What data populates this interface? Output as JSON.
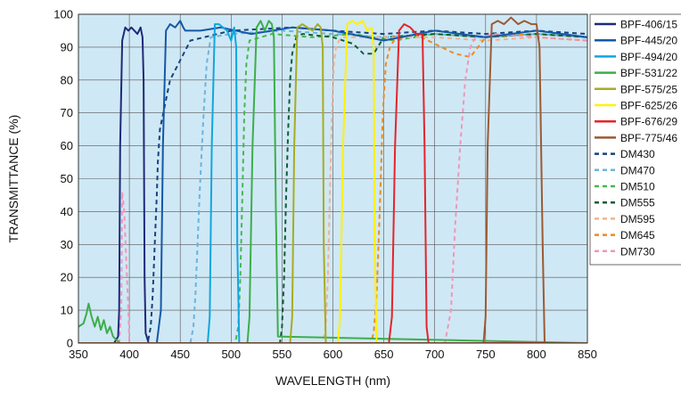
{
  "chart_data": {
    "type": "line",
    "xlabel": "WAVELENGTH (nm)",
    "ylabel": "TRANSMITTANCE (%)",
    "xlim": [
      350,
      850
    ],
    "ylim": [
      0,
      100
    ],
    "xticks": [
      350,
      400,
      450,
      500,
      550,
      600,
      650,
      700,
      750,
      800,
      850
    ],
    "yticks": [
      0,
      10,
      20,
      30,
      40,
      50,
      60,
      70,
      80,
      90,
      100
    ],
    "grid": true,
    "legend_position": "right",
    "background": "#cfe8f5",
    "series": [
      {
        "name": "BPF-406/15",
        "color": "#1e2a78",
        "dash": false,
        "x": [
          350,
          385,
          389,
          390,
          391,
          393,
          396,
          399,
          402,
          405,
          408,
          411,
          413,
          414,
          415,
          416,
          419,
          850
        ],
        "y": [
          0,
          0,
          2,
          10,
          60,
          92,
          96,
          95,
          96,
          95,
          94,
          96,
          93,
          80,
          20,
          3,
          0,
          0
        ]
      },
      {
        "name": "BPF-445/20",
        "color": "#1458a8",
        "dash": false,
        "x": [
          350,
          427,
          431,
          433,
          436,
          440,
          445,
          450,
          453,
          455,
          458,
          470,
          490,
          520,
          560,
          600,
          650,
          700,
          750,
          800,
          850
        ],
        "y": [
          0,
          0,
          10,
          60,
          95,
          97,
          96,
          98,
          96,
          95,
          95,
          95,
          96,
          94,
          96,
          95,
          92,
          95,
          93,
          95,
          93
        ]
      },
      {
        "name": "BPF-494/20",
        "color": "#10a6e0",
        "dash": false,
        "x": [
          350,
          477,
          479,
          481,
          484,
          488,
          492,
          496,
          500,
          503,
          505,
          506,
          508,
          850
        ],
        "y": [
          0,
          0,
          8,
          60,
          97,
          97,
          96,
          95,
          92,
          96,
          90,
          30,
          0,
          0
        ]
      },
      {
        "name": "BPF-531/22",
        "color": "#3cae4a",
        "dash": false,
        "x": [
          350,
          355,
          358,
          360,
          363,
          366,
          369,
          372,
          375,
          378,
          381,
          384,
          387,
          391,
          516,
          518,
          521,
          525,
          529,
          533,
          537,
          540,
          542,
          544,
          546,
          850
        ],
        "y": [
          5,
          6,
          9,
          12,
          8,
          5,
          8,
          4,
          7,
          3,
          5,
          2,
          1,
          0,
          0,
          8,
          60,
          96,
          98,
          95,
          98,
          97,
          93,
          40,
          2,
          0
        ]
      },
      {
        "name": "BPF-575/25",
        "color": "#a5ad23",
        "dash": false,
        "x": [
          350,
          558,
          560,
          562,
          565,
          570,
          575,
          580,
          585,
          588,
          590,
          591,
          593,
          850
        ],
        "y": [
          0,
          0,
          8,
          60,
          96,
          97,
          96,
          95,
          97,
          96,
          90,
          30,
          0,
          0
        ]
      },
      {
        "name": "BPF-625/26",
        "color": "#fff200",
        "dash": false,
        "x": [
          350,
          605,
          607,
          610,
          614,
          619,
          624,
          629,
          634,
          638,
          640,
          641,
          643,
          850
        ],
        "y": [
          0,
          0,
          8,
          60,
          97,
          98,
          97,
          98,
          95,
          96,
          90,
          30,
          0,
          0
        ]
      },
      {
        "name": "BPF-676/29",
        "color": "#e5242b",
        "dash": false,
        "x": [
          350,
          655,
          658,
          661,
          665,
          670,
          676,
          682,
          688,
          690,
          692,
          694,
          850
        ],
        "y": [
          0,
          0,
          8,
          60,
          95,
          97,
          96,
          94,
          94,
          60,
          5,
          0,
          0
        ]
      },
      {
        "name": "BPF-775/46",
        "color": "#9c5a32",
        "dash": false,
        "x": [
          350,
          748,
          750,
          752,
          756,
          762,
          768,
          775,
          782,
          788,
          795,
          800,
          803,
          806,
          808,
          850
        ],
        "y": [
          0,
          0,
          8,
          60,
          97,
          98,
          97,
          99,
          97,
          98,
          97,
          97,
          90,
          30,
          0,
          0
        ]
      },
      {
        "name": "DM430",
        "color": "#16437e",
        "dash": true,
        "x": [
          350,
          418,
          421,
          423,
          425,
          427,
          428,
          430,
          440,
          460,
          500,
          560,
          600,
          650,
          700,
          750,
          800,
          850
        ],
        "y": [
          0,
          0,
          5,
          15,
          30,
          45,
          55,
          65,
          80,
          92,
          95,
          96,
          95,
          94,
          95,
          94,
          95,
          94
        ]
      },
      {
        "name": "DM470",
        "color": "#6cb4dd",
        "dash": true,
        "x": [
          350,
          460,
          463,
          465,
          467,
          469,
          471,
          473,
          476,
          480,
          500,
          550,
          600,
          650,
          700,
          750,
          800,
          850
        ],
        "y": [
          0,
          0,
          5,
          15,
          30,
          45,
          58,
          70,
          85,
          93,
          94,
          95,
          94,
          93,
          94,
          93,
          94,
          93
        ]
      },
      {
        "name": "DM510",
        "color": "#46b850",
        "dash": true,
        "x": [
          350,
          504,
          507,
          509,
          511,
          513,
          515,
          518,
          540,
          580,
          620,
          660,
          700,
          750,
          800,
          850
        ],
        "y": [
          0,
          0,
          5,
          20,
          45,
          70,
          85,
          92,
          94,
          93,
          94,
          92,
          94,
          93,
          94,
          93
        ]
      },
      {
        "name": "DM555",
        "color": "#0d5e33",
        "dash": true,
        "x": [
          350,
          548,
          550,
          552,
          554,
          556,
          558,
          560,
          564,
          570,
          600,
          620,
          630,
          640,
          650,
          700,
          750,
          800,
          850
        ],
        "y": [
          0,
          0,
          5,
          20,
          45,
          65,
          80,
          88,
          93,
          94,
          93,
          91,
          88,
          88,
          93,
          94,
          93,
          94,
          93
        ]
      },
      {
        "name": "DM595",
        "color": "#f5b090",
        "dash": true,
        "x": [
          350,
          590,
          593,
          595,
          597,
          599,
          601,
          603,
          606,
          610,
          650,
          700,
          750,
          800,
          850
        ],
        "y": [
          0,
          0,
          5,
          20,
          45,
          70,
          85,
          90,
          92,
          93,
          93,
          93,
          92,
          93,
          92
        ]
      },
      {
        "name": "DM645",
        "color": "#ec8b1e",
        "dash": true,
        "x": [
          350,
          637,
          640,
          643,
          646,
          649,
          652,
          656,
          660,
          680,
          700,
          720,
          735,
          750,
          780,
          800,
          850
        ],
        "y": [
          0,
          0,
          3,
          15,
          40,
          70,
          85,
          90,
          92,
          94,
          91,
          88,
          87,
          93,
          94,
          93,
          92
        ]
      },
      {
        "name": "DM730",
        "color": "#f296b8",
        "dash": true,
        "x": [
          350,
          390,
          392,
          393,
          395,
          397,
          399,
          400,
          710,
          716,
          720,
          725,
          730,
          735,
          740,
          760,
          800,
          850
        ],
        "y": [
          0,
          0,
          10,
          46,
          40,
          25,
          10,
          0,
          0,
          10,
          35,
          60,
          80,
          90,
          93,
          94,
          93,
          92
        ]
      }
    ]
  }
}
